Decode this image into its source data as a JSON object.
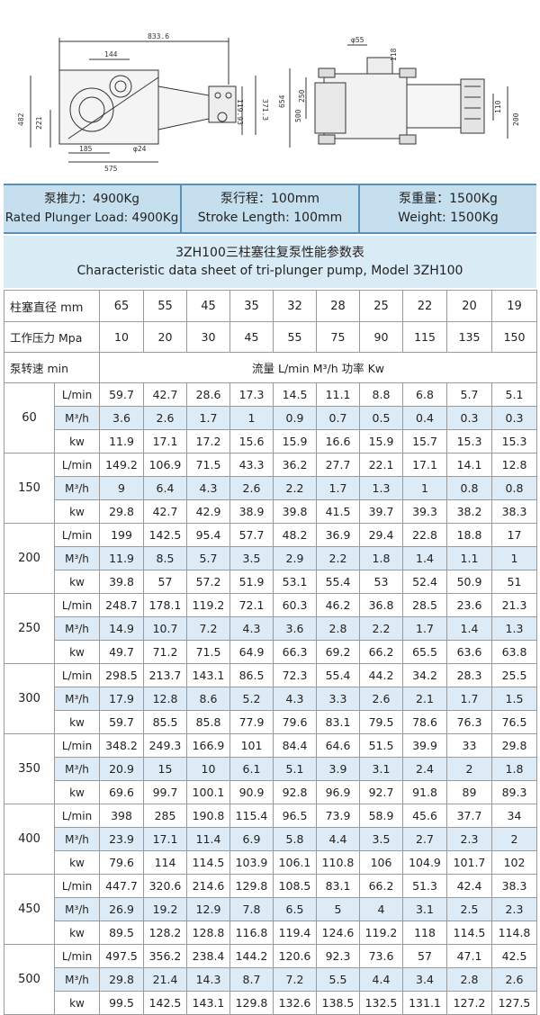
{
  "drawing": {
    "left_dims": [
      "833.6",
      "144",
      "482",
      "221",
      "185",
      "φ24",
      "575",
      "119.93",
      "371.3"
    ],
    "right_dims": [
      "φ55",
      "118",
      "654",
      "250",
      "500",
      "110",
      "200"
    ]
  },
  "specs": [
    {
      "zh": "泵推力：4900Kg",
      "en": "Rated Plunger Load: 4900Kg"
    },
    {
      "zh": "泵行程：100mm",
      "en": "Stroke Length: 100mm"
    },
    {
      "zh": "泵重量：1500Kg",
      "en": "Weight: 1500Kg"
    }
  ],
  "title": {
    "zh": "3ZH100三柱塞往复泵性能参数表",
    "en": "Characteristic data sheet of tri-plunger pump, Model 3ZH100"
  },
  "table": {
    "diameter_label": "柱塞直径 mm",
    "diameters": [
      "65",
      "55",
      "45",
      "35",
      "32",
      "28",
      "25",
      "22",
      "20",
      "19"
    ],
    "pressure_label": "工作压力 Mpa",
    "pressures": [
      "10",
      "20",
      "30",
      "45",
      "55",
      "75",
      "90",
      "115",
      "135",
      "150"
    ],
    "speed_label": "泵转速 min",
    "flow_header": "流量 L/min  M³/h   功率 Kw",
    "units": [
      "L/min",
      "M³/h",
      "kw"
    ],
    "groups": [
      {
        "speed": "60",
        "rows": [
          [
            "59.7",
            "42.7",
            "28.6",
            "17.3",
            "14.5",
            "11.1",
            "8.8",
            "6.8",
            "5.7",
            "5.1"
          ],
          [
            "3.6",
            "2.6",
            "1.7",
            "1",
            "0.9",
            "0.7",
            "0.5",
            "0.4",
            "0.3",
            "0.3"
          ],
          [
            "11.9",
            "17.1",
            "17.2",
            "15.6",
            "15.9",
            "16.6",
            "15.9",
            "15.7",
            "15.3",
            "15.3"
          ]
        ]
      },
      {
        "speed": "150",
        "rows": [
          [
            "149.2",
            "106.9",
            "71.5",
            "43.3",
            "36.2",
            "27.7",
            "22.1",
            "17.1",
            "14.1",
            "12.8"
          ],
          [
            "9",
            "6.4",
            "4.3",
            "2.6",
            "2.2",
            "1.7",
            "1.3",
            "1",
            "0.8",
            "0.8"
          ],
          [
            "29.8",
            "42.7",
            "42.9",
            "38.9",
            "39.8",
            "41.5",
            "39.7",
            "39.3",
            "38.2",
            "38.3"
          ]
        ]
      },
      {
        "speed": "200",
        "rows": [
          [
            "199",
            "142.5",
            "95.4",
            "57.7",
            "48.2",
            "36.9",
            "29.4",
            "22.8",
            "18.8",
            "17"
          ],
          [
            "11.9",
            "8.5",
            "5.7",
            "3.5",
            "2.9",
            "2.2",
            "1.8",
            "1.4",
            "1.1",
            "1"
          ],
          [
            "39.8",
            "57",
            "57.2",
            "51.9",
            "53.1",
            "55.4",
            "53",
            "52.4",
            "50.9",
            "51"
          ]
        ]
      },
      {
        "speed": "250",
        "rows": [
          [
            "248.7",
            "178.1",
            "119.2",
            "72.1",
            "60.3",
            "46.2",
            "36.8",
            "28.5",
            "23.6",
            "21.3"
          ],
          [
            "14.9",
            "10.7",
            "7.2",
            "4.3",
            "3.6",
            "2.8",
            "2.2",
            "1.7",
            "1.4",
            "1.3"
          ],
          [
            "49.7",
            "71.2",
            "71.5",
            "64.9",
            "66.3",
            "69.2",
            "66.2",
            "65.5",
            "63.6",
            "63.8"
          ]
        ]
      },
      {
        "speed": "300",
        "rows": [
          [
            "298.5",
            "213.7",
            "143.1",
            "86.5",
            "72.3",
            "55.4",
            "44.2",
            "34.2",
            "28.3",
            "25.5"
          ],
          [
            "17.9",
            "12.8",
            "8.6",
            "5.2",
            "4.3",
            "3.3",
            "2.6",
            "2.1",
            "1.7",
            "1.5"
          ],
          [
            "59.7",
            "85.5",
            "85.8",
            "77.9",
            "79.6",
            "83.1",
            "79.5",
            "78.6",
            "76.3",
            "76.5"
          ]
        ]
      },
      {
        "speed": "350",
        "rows": [
          [
            "348.2",
            "249.3",
            "166.9",
            "101",
            "84.4",
            "64.6",
            "51.5",
            "39.9",
            "33",
            "29.8"
          ],
          [
            "20.9",
            "15",
            "10",
            "6.1",
            "5.1",
            "3.9",
            "3.1",
            "2.4",
            "2",
            "1.8"
          ],
          [
            "69.6",
            "99.7",
            "100.1",
            "90.9",
            "92.8",
            "96.9",
            "92.7",
            "91.8",
            "89",
            "89.3"
          ]
        ]
      },
      {
        "speed": "400",
        "rows": [
          [
            "398",
            "285",
            "190.8",
            "115.4",
            "96.5",
            "73.9",
            "58.9",
            "45.6",
            "37.7",
            "34"
          ],
          [
            "23.9",
            "17.1",
            "11.4",
            "6.9",
            "5.8",
            "4.4",
            "3.5",
            "2.7",
            "2.3",
            "2"
          ],
          [
            "79.6",
            "114",
            "114.5",
            "103.9",
            "106.1",
            "110.8",
            "106",
            "104.9",
            "101.7",
            "102"
          ]
        ]
      },
      {
        "speed": "450",
        "rows": [
          [
            "447.7",
            "320.6",
            "214.6",
            "129.8",
            "108.5",
            "83.1",
            "66.2",
            "51.3",
            "42.4",
            "38.3"
          ],
          [
            "26.9",
            "19.2",
            "12.9",
            "7.8",
            "6.5",
            "5",
            "4",
            "3.1",
            "2.5",
            "2.3"
          ],
          [
            "89.5",
            "128.2",
            "128.8",
            "116.8",
            "119.4",
            "124.6",
            "119.2",
            "118",
            "114.5",
            "114.8"
          ]
        ]
      },
      {
        "speed": "500",
        "rows": [
          [
            "497.5",
            "356.2",
            "238.4",
            "144.2",
            "120.6",
            "92.3",
            "73.6",
            "57",
            "47.1",
            "42.5"
          ],
          [
            "29.8",
            "21.4",
            "14.3",
            "8.7",
            "7.2",
            "5.5",
            "4.4",
            "3.4",
            "2.8",
            "2.6"
          ],
          [
            "99.5",
            "142.5",
            "143.1",
            "129.8",
            "132.6",
            "138.5",
            "132.5",
            "131.1",
            "127.2",
            "127.5"
          ]
        ]
      }
    ]
  },
  "colors": {
    "band": "#dcebf5",
    "spec_bg": "#c6dfef",
    "title_bg": "#d9ebf5",
    "rule": "#5a8fb7"
  }
}
